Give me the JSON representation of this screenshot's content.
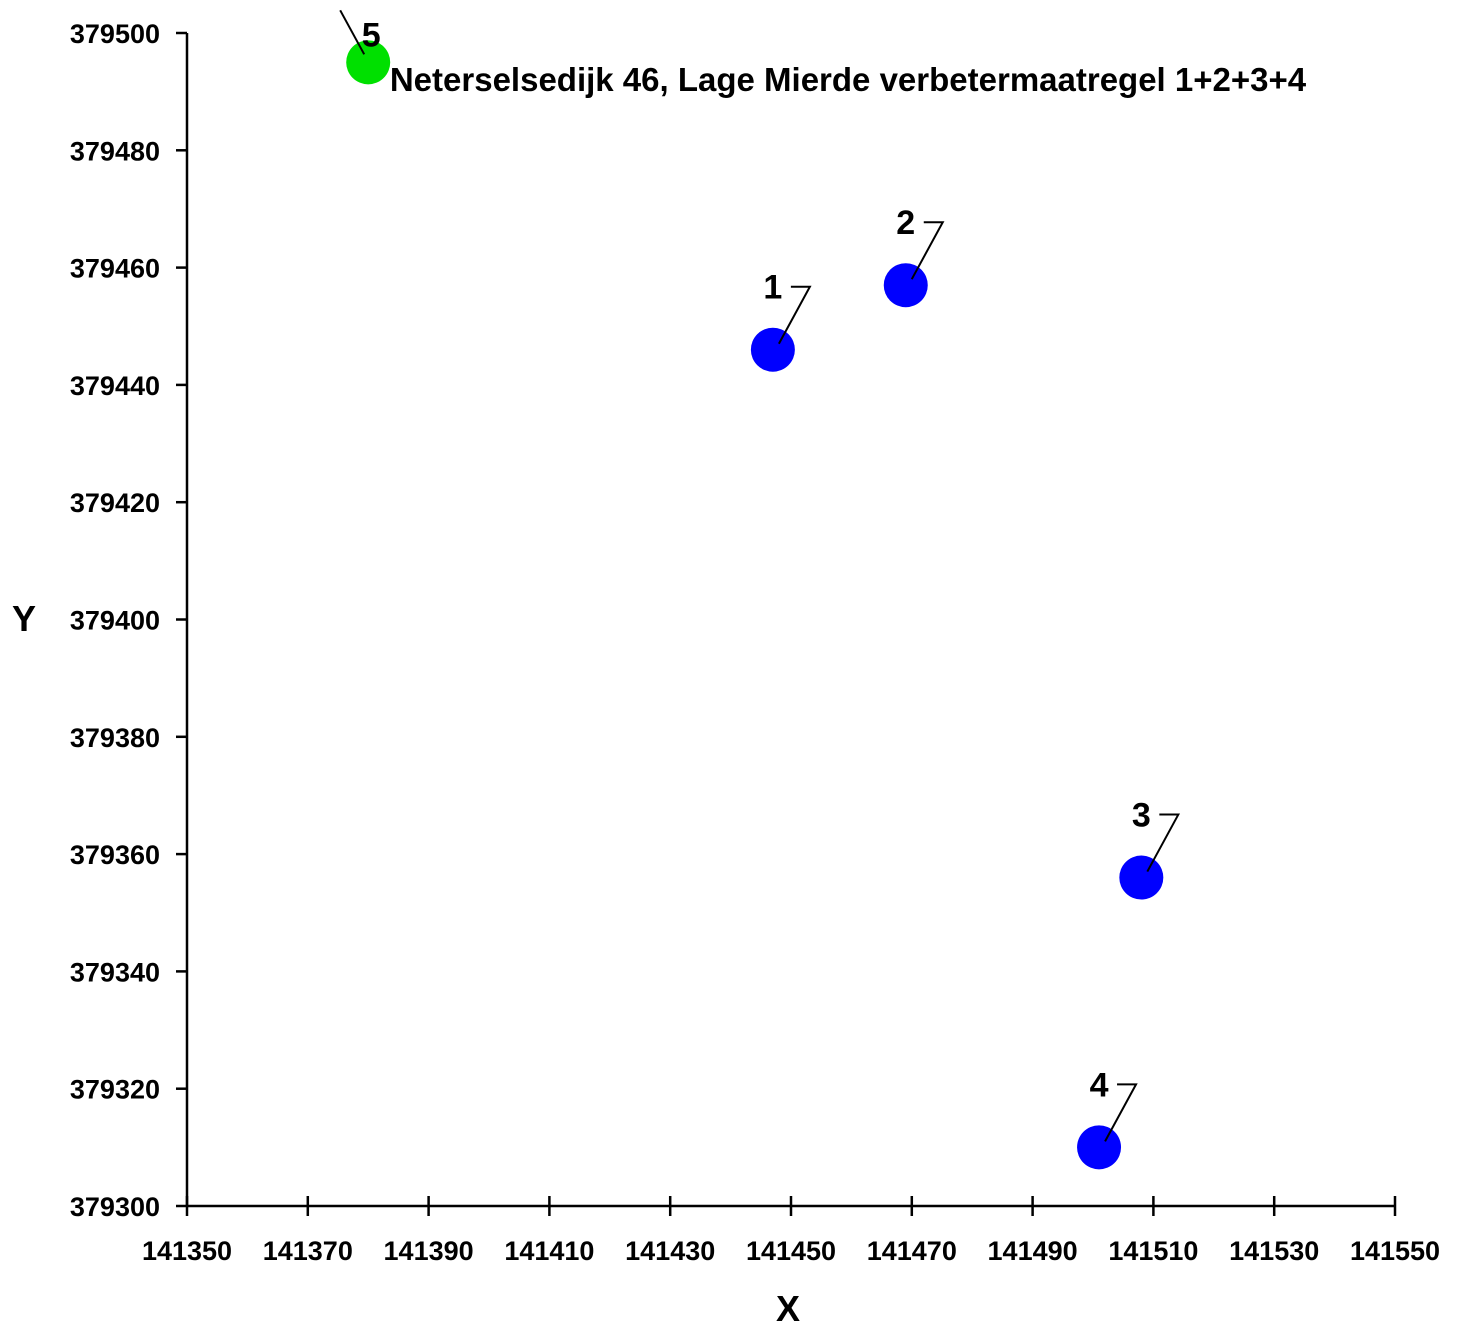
{
  "chart_data": {
    "type": "scatter",
    "title": "Neterselsedijk 46, Lage Mierde verbetermaatregel 1+2+3+4",
    "xlabel": "X",
    "ylabel": "Y",
    "xlim": [
      141350,
      141550
    ],
    "ylim": [
      379300,
      379500
    ],
    "x_ticks": [
      "141350",
      "141370",
      "141390",
      "141410",
      "141430",
      "141450",
      "141470",
      "141490",
      "141510",
      "141530",
      "141550"
    ],
    "y_ticks": [
      "379500",
      "379480",
      "379460",
      "379440",
      "379420",
      "379400",
      "379380",
      "379360",
      "379340",
      "379320",
      "379300"
    ],
    "grid": false,
    "points": [
      {
        "label": "1",
        "x": 141447,
        "y": 379446,
        "color": "#0000ff"
      },
      {
        "label": "2",
        "x": 141469,
        "y": 379457,
        "color": "#0000ff"
      },
      {
        "label": "3",
        "x": 141508,
        "y": 379356,
        "color": "#0000ff"
      },
      {
        "label": "4",
        "x": 141501,
        "y": 379310,
        "color": "#0000ff"
      },
      {
        "label": "5",
        "x": 141380,
        "y": 379495,
        "color": "#00e000"
      }
    ]
  }
}
